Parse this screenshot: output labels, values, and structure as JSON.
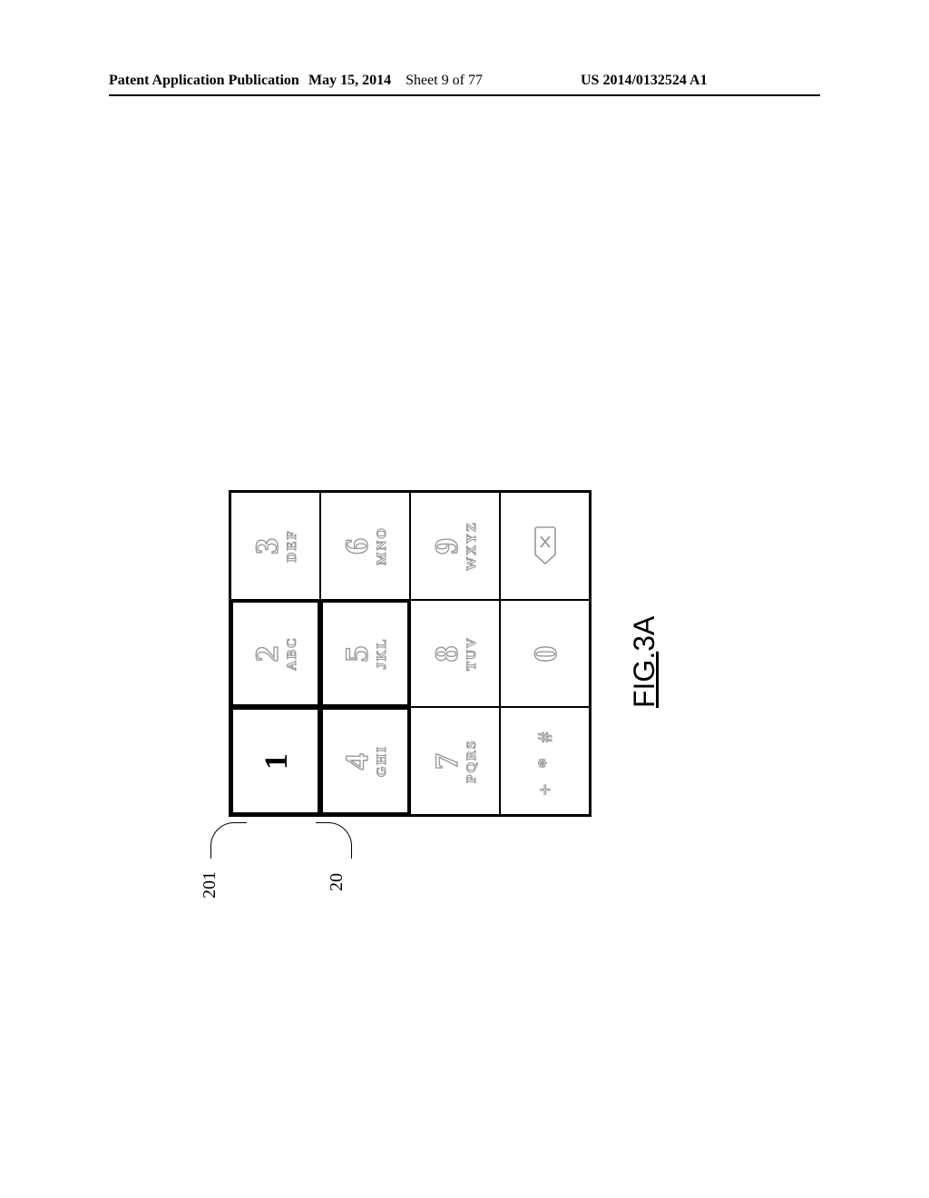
{
  "header": {
    "left": "Patent Application Publication",
    "mid_date": "May 15, 2014",
    "mid_sheet": "Sheet 9 of 77",
    "right": "US 2014/0132524 A1"
  },
  "refs": {
    "r201": "201",
    "r20": "20"
  },
  "keypad": {
    "rows": [
      [
        {
          "digit": "1",
          "letters": "",
          "solid": true,
          "thick": true
        },
        {
          "digit": "2",
          "letters": "ABC",
          "solid": false,
          "thick": true
        },
        {
          "digit": "3",
          "letters": "DEF",
          "solid": false,
          "thick": false
        }
      ],
      [
        {
          "digit": "4",
          "letters": "GHI",
          "solid": false,
          "thick": true
        },
        {
          "digit": "5",
          "letters": "JKL",
          "solid": false,
          "thick": true
        },
        {
          "digit": "6",
          "letters": "MNO",
          "solid": false,
          "thick": false
        }
      ],
      [
        {
          "digit": "7",
          "letters": "PQRS",
          "solid": false,
          "thick": false
        },
        {
          "digit": "8",
          "letters": "TUV",
          "solid": false,
          "thick": false
        },
        {
          "digit": "9",
          "letters": "WXYZ",
          "solid": false,
          "thick": false
        }
      ],
      [
        {
          "digit": "",
          "letters": "",
          "syms": "+ * #",
          "solid": false,
          "thick": false
        },
        {
          "digit": "0",
          "letters": "",
          "solid": false,
          "thick": false
        },
        {
          "digit": "",
          "letters": "",
          "icon": "backspace",
          "solid": false,
          "thick": false
        }
      ]
    ]
  },
  "figure_label": {
    "prefix": "FIG.",
    "num": "3A"
  },
  "style": {
    "outline_gray": "#9a9a9a",
    "page_bg": "#ffffff"
  }
}
